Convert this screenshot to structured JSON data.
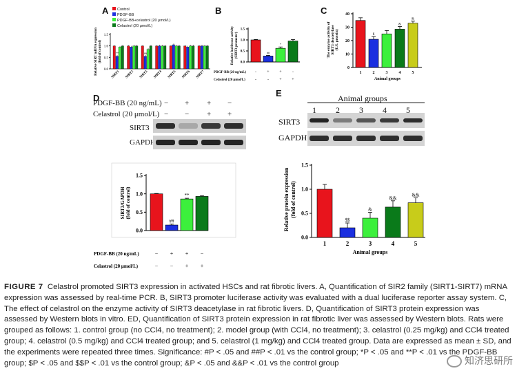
{
  "panels": {
    "A": {
      "letter": "A",
      "legend": [
        "Control",
        "PDGF-BB",
        "PDGF-BB+celastrol (20 μmol/L)",
        "Celastrol (20 μmol/L)"
      ],
      "ylabel_l1": "Relative SIRT mRNA expression",
      "ylabel_l2": "(fold of control)",
      "yticks": [
        "0.0",
        "0.5",
        "1.0",
        "1.5"
      ],
      "sig": {
        "s1": "**",
        "s2": "##"
      }
    },
    "B": {
      "letter": "B",
      "ylabel_l1": "Relative luciferase activity",
      "ylabel_l2": "(SIRT3 promoter)",
      "yticks": [
        "0.0",
        "0.5",
        "1.0",
        "1.5"
      ],
      "row1_label": "PDGF-BB (20 ng/mL)",
      "row2_label": "Celastrol (20 μmol/L)",
      "row1_signs": [
        "-",
        "+",
        "+",
        "-"
      ],
      "row2_signs": [
        "-",
        "-",
        "+",
        "+"
      ],
      "sig": {
        "bar2": "##",
        "bar3": "*"
      }
    },
    "C": {
      "letter": "C",
      "ylabel_l1": "The enzyme activity of",
      "ylabel_l2": "SIRT3 deacetylase",
      "ylabel_l3": "(U/L protein)",
      "yticks": [
        "0",
        "10",
        "20",
        "30",
        "40"
      ],
      "xticks": [
        "1",
        "2",
        "3",
        "4",
        "5"
      ],
      "xlabel": "Animal groups",
      "sig": {
        "bar2": "$",
        "bar4": "&",
        "bar5": "&"
      }
    },
    "D": {
      "letter": "D",
      "row1_label": "PDGF-BB (20 ng/mL)",
      "row2_label": "Celastrol (20 μmol/L)",
      "row1_signs": [
        "−",
        "+",
        "+",
        "−"
      ],
      "row2_signs": [
        "−",
        "−",
        "+",
        "+"
      ],
      "blot1": "SIRT3",
      "blot2": "GAPDH",
      "ylabel_l1": "SIRT3/GAPDH",
      "ylabel_l2": "(fold of control)",
      "yticks": [
        "0.0",
        "0.5",
        "1.0",
        "1.5"
      ],
      "x_row1_label": "PDGF-BB (20 ng/mL)",
      "x_row2_label": "Celastrol (20 μmol/L)",
      "x_row1_signs": [
        "−",
        "+",
        "+",
        "−"
      ],
      "x_row2_signs": [
        "−",
        "−",
        "+",
        "+"
      ],
      "sig": {
        "bar2": "##",
        "bar3": "**"
      }
    },
    "E": {
      "letter": "E",
      "header": "Animal groups",
      "lanes": [
        "1",
        "2",
        "3",
        "4",
        "5"
      ],
      "blot1": "SIRT3",
      "blot2": "GAPDH",
      "ylabel_l1": "Relative protein expression",
      "ylabel_l2": "(fold of control)",
      "yticks": [
        "0.0",
        "0.5",
        "1.0",
        "1.5"
      ],
      "xticks": [
        "1",
        "2",
        "3",
        "4",
        "5"
      ],
      "xlabel": "Animal groups",
      "sig": {
        "bar2": "$$",
        "bar3": "&",
        "bar4": "&&",
        "bar5": "&&"
      }
    }
  },
  "colors": {
    "control": "#e8141c",
    "pdgf": "#1b2fe0",
    "combo": "#3cf03c",
    "celastrol": "#0a7a1a",
    "group5": "#c8cc1a"
  },
  "chart_data": [
    {
      "type": "bar",
      "panel": "A",
      "categories": [
        "SIRT1",
        "SIRT2",
        "SIRT3",
        "SIRT4",
        "SIRT5",
        "SIRT6",
        "SIRT7"
      ],
      "series": [
        {
          "name": "Control",
          "values": [
            1.0,
            1.0,
            1.0,
            1.0,
            1.0,
            1.0,
            1.0
          ]
        },
        {
          "name": "PDGF-BB",
          "values": [
            0.55,
            0.95,
            0.55,
            1.0,
            1.05,
            0.95,
            1.0
          ]
        },
        {
          "name": "PDGF-BB+celastrol (20 μmol/L)",
          "values": [
            0.95,
            1.0,
            0.85,
            1.0,
            1.0,
            1.0,
            1.0
          ]
        },
        {
          "name": "Celastrol (20 μmol/L)",
          "values": [
            1.0,
            1.0,
            1.0,
            1.0,
            1.0,
            1.0,
            1.0
          ]
        }
      ],
      "errors": [
        [
          0.03,
          0.03,
          0.03,
          0.03,
          0.03,
          0.03,
          0.03
        ],
        [
          0.05,
          0.05,
          0.05,
          0.05,
          0.05,
          0.05,
          0.05
        ],
        [
          0.04,
          0.04,
          0.05,
          0.04,
          0.04,
          0.04,
          0.04
        ],
        [
          0.04,
          0.04,
          0.04,
          0.04,
          0.04,
          0.04,
          0.04
        ]
      ],
      "ylim": [
        0,
        1.5
      ]
    },
    {
      "type": "bar",
      "panel": "B",
      "categories": [
        "1",
        "2",
        "3",
        "4"
      ],
      "values": [
        1.0,
        0.27,
        0.62,
        0.95
      ],
      "errors": [
        0.02,
        0.03,
        0.06,
        0.07
      ],
      "ylim": [
        0,
        1.5
      ]
    },
    {
      "type": "bar",
      "panel": "C",
      "categories": [
        "1",
        "2",
        "3",
        "4",
        "5"
      ],
      "values": [
        35,
        21,
        25,
        28.5,
        33
      ],
      "errors": [
        2,
        2,
        2.5,
        2,
        1.5
      ],
      "ylim": [
        0,
        40
      ]
    },
    {
      "type": "bar",
      "panel": "D",
      "categories": [
        "1",
        "2",
        "3",
        "4"
      ],
      "values": [
        1.0,
        0.15,
        0.86,
        0.93
      ],
      "errors": [
        0.01,
        0.03,
        0.02,
        0.02
      ],
      "ylim": [
        0,
        1.5
      ]
    },
    {
      "type": "bar",
      "panel": "E",
      "categories": [
        "1",
        "2",
        "3",
        "4",
        "5"
      ],
      "values": [
        1.0,
        0.2,
        0.4,
        0.63,
        0.72
      ],
      "errors": [
        0.1,
        0.1,
        0.12,
        0.13,
        0.1
      ],
      "ylim": [
        0,
        1.5
      ]
    }
  ],
  "caption": {
    "title": "FIGURE 7",
    "text": "Celastrol promoted SIRT3 expression in activated HSCs and rat fibrotic livers. A, Quantification of SIR2 family (SIRT1-SIRT7) mRNA expression was assessed by real-time PCR. B, SIRT3 promoter luciferase activity was evaluated with a dual luciferase reporter assay system. C, The effect of celastrol on the enzyme activity of SIRT3 deacetylase in rat fibrotic livers. D, Quantification of SIRT3 protein expression was assessed by Western blots in vitro. ED, Quantification of SIRT3 protein expression in rat fibrotic liver was assessed by Western blots. Rats were grouped as follows: 1. control group (no CCl4, no treatment); 2. model group (with CCl4, no treatment); 3. celastrol (0.25 mg/kg) and CCl4 treated group; 4. celastrol (0.5 mg/kg) and CCl4 treated group; and 5. celastrol (1 mg/kg) and CCl4 treated group. Data are expressed as mean ± SD, and the experiments were repeated three times. Significance: #P < .05 and ##P < .01 vs the control group; *P < .05 and **P < .01 vs the PDGF-BB group; $P < .05 and $$P < .01 vs the control group; &P < .05 and &&P < .01 vs the control group"
  },
  "watermark": "知济思研所"
}
